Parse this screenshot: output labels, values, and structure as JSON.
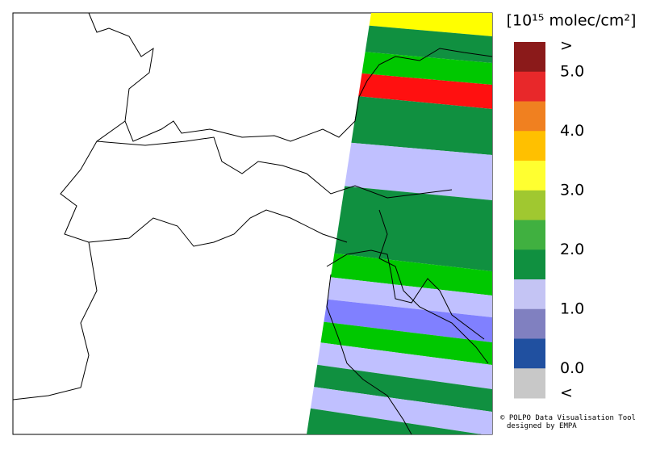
{
  "colorbar": {
    "title": "[10¹⁵ molec/cm²]",
    "colors": [
      "#8b1a1a",
      "#e8282a",
      "#f08020",
      "#ffc000",
      "#ffff30",
      "#a0c830",
      "#40b040",
      "#109040",
      "#c4c4f4",
      "#8080c0",
      "#2050a0",
      "#c8c8c8"
    ],
    "labels": [
      ">",
      "5.0",
      "4.0",
      "3.0",
      "2.0",
      "1.0",
      "0.0",
      "<"
    ]
  },
  "credits": [
    "© POLPO Data Visualisation Tool",
    "designed by EMPA"
  ]
}
